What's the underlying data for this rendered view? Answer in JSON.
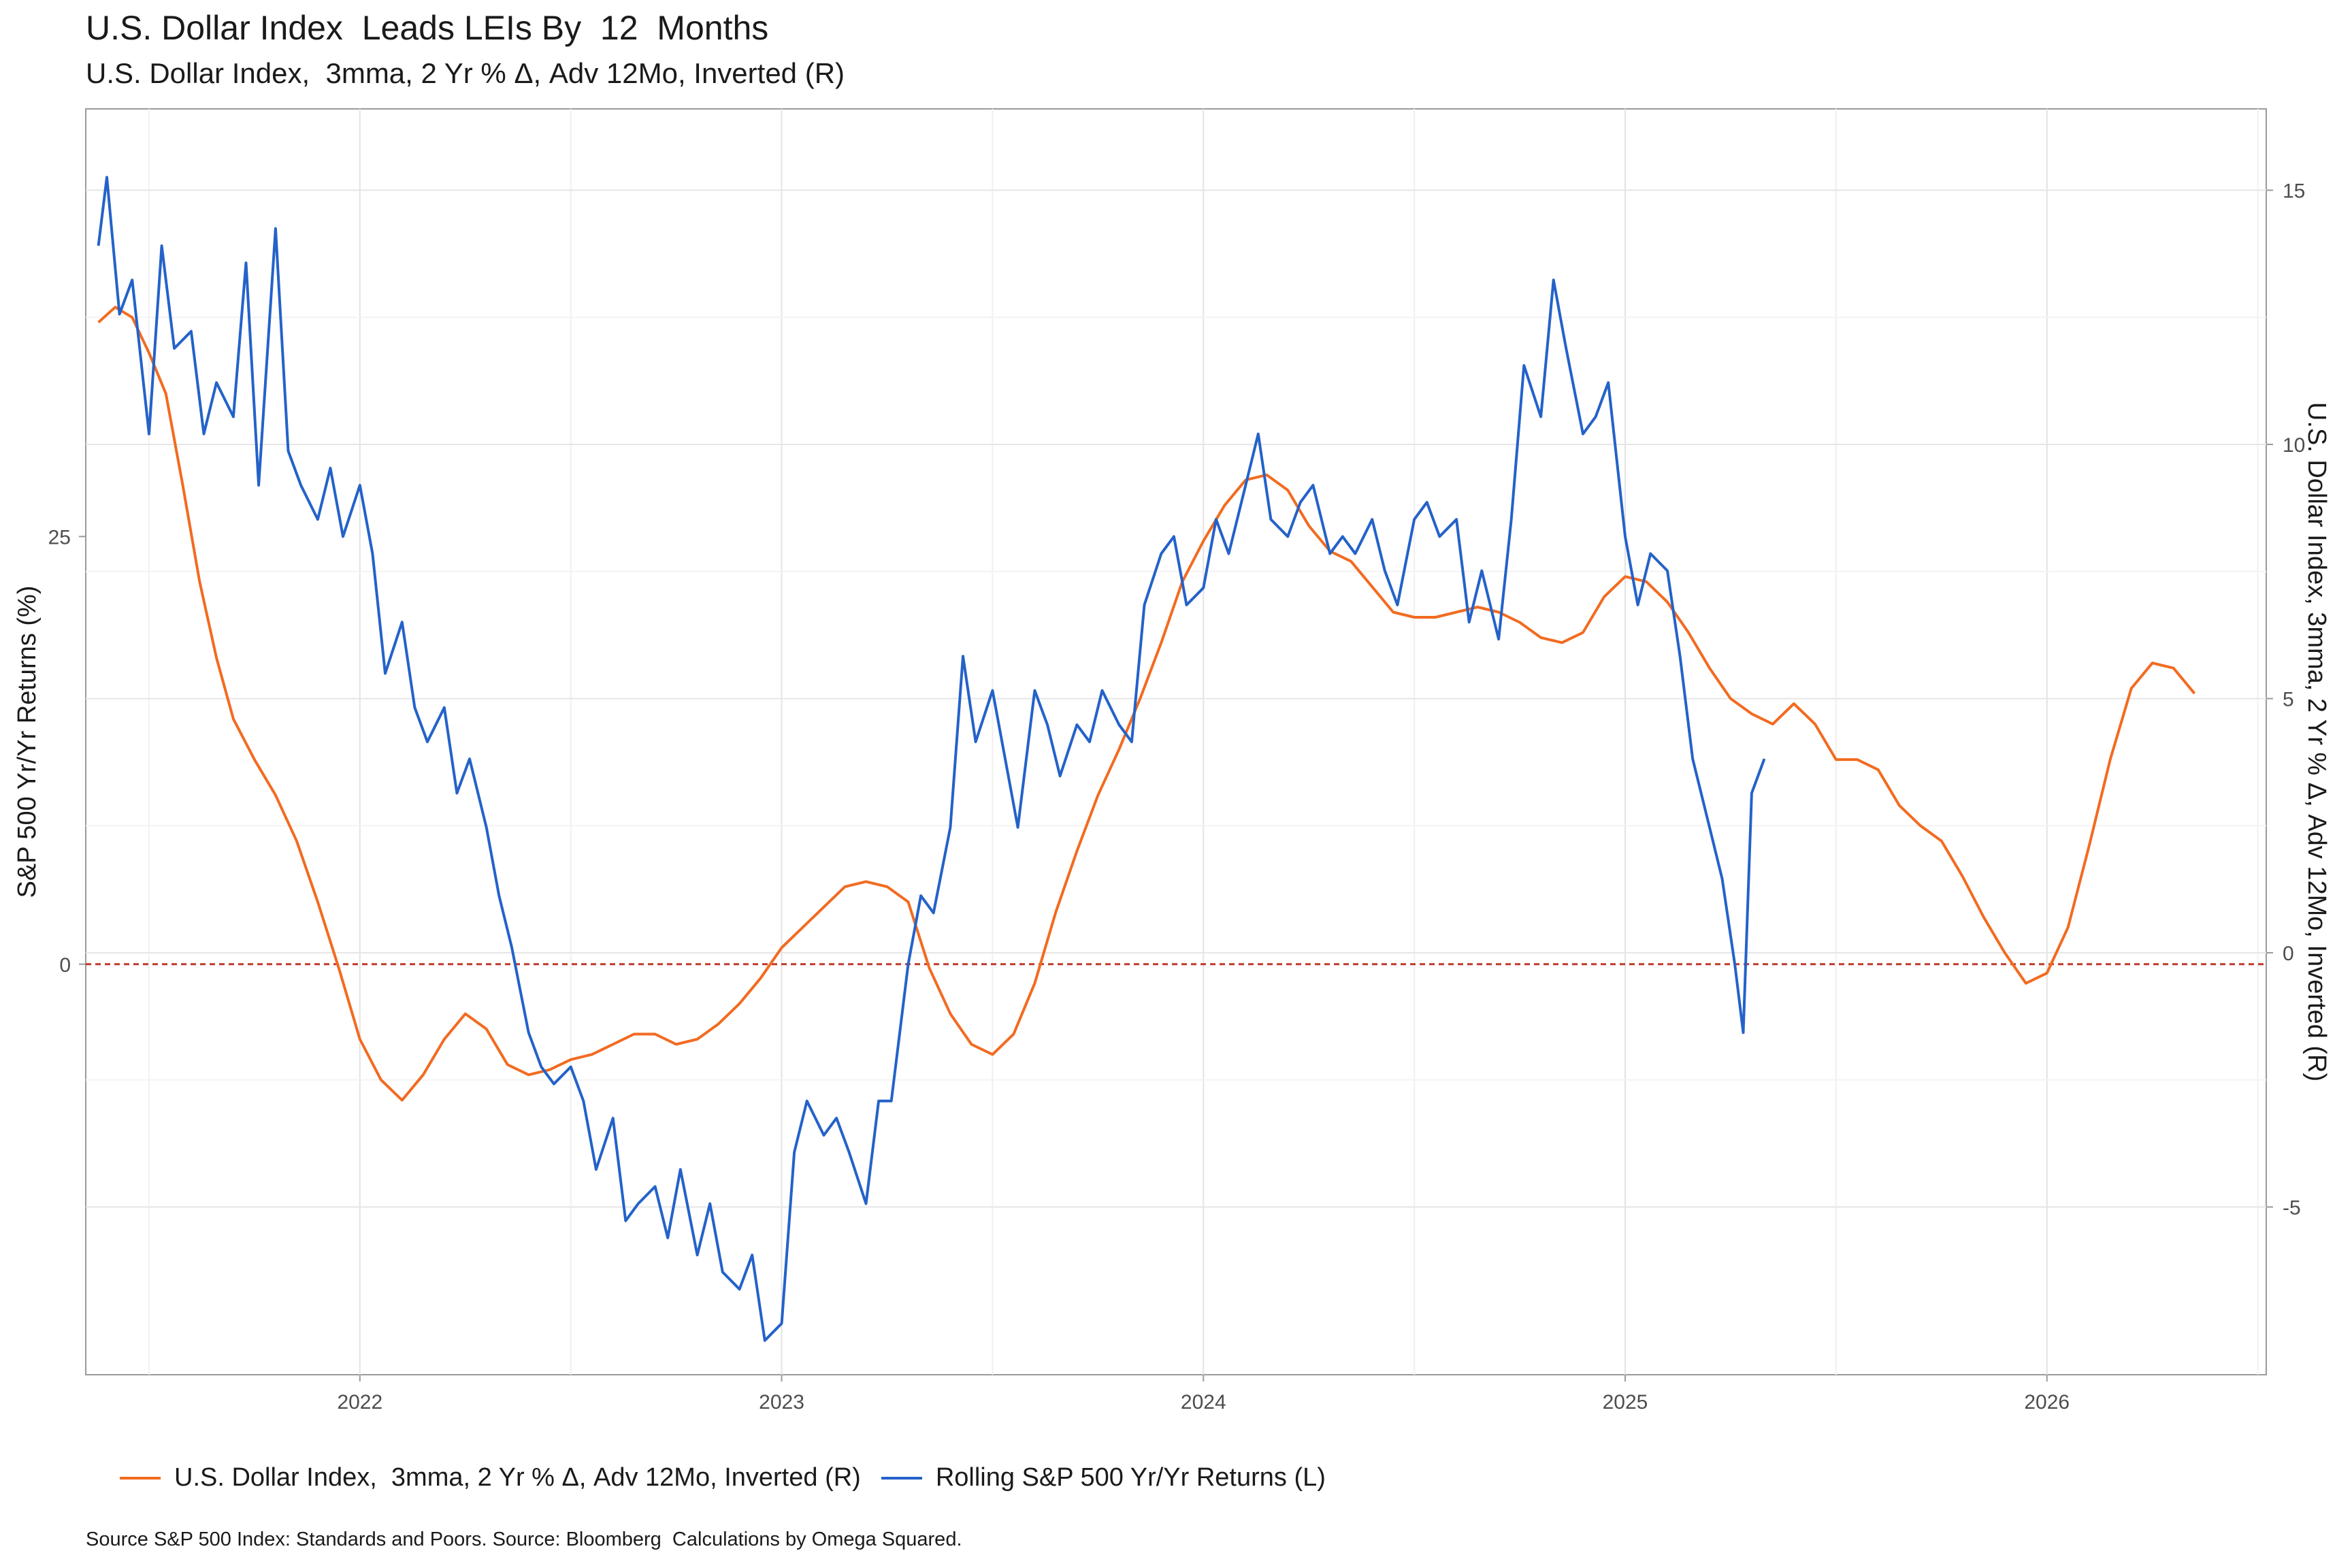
{
  "title": "U.S. Dollar Index  Leads LEIs By  12  Months",
  "subtitle": "U.S. Dollar Index,  3mma, 2 Yr % Δ, Adv 12Mo, Inverted (R)",
  "source": "Source S&P 500 Index: Standards and Poors. Source: Bloomberg  Calculations by Omega Squared.",
  "legend": [
    {
      "label": "U.S. Dollar Index,  3mma, 2 Yr % Δ, Adv 12Mo, Inverted (R)",
      "color": "#F26B21"
    },
    {
      "label": "Rolling S&P 500 Yr/Yr Returns (L)",
      "color": "#2462C9"
    }
  ],
  "chart_data": {
    "type": "line",
    "ylabel": "S&P 500 Yr/Yr Returns (%)",
    "y2label": "U.S. Dollar Index,  3mma, 2 Yr % Δ, Adv 12Mo, Inverted (R)",
    "xlim": [
      2021.35,
      2026.52
    ],
    "ylim": [
      -24,
      50
    ],
    "y2lim": [
      -8.3,
      16.6
    ],
    "x_ticks": [
      "2022",
      "2023",
      "2024",
      "2025",
      "2026"
    ],
    "y_ticks": [
      "0",
      "25"
    ],
    "y2_ticks": [
      "-5",
      "0",
      "5",
      "10",
      "15"
    ],
    "zero_line_color": "#C0392B",
    "grid": true,
    "legend_position": "bottom",
    "series": [
      {
        "name": "Rolling S&P 500 Yr/Yr Returns (L)",
        "axis": "left",
        "color": "#2462C9",
        "x": [
          2021.38,
          2021.4,
          2021.43,
          2021.46,
          2021.5,
          2021.53,
          2021.56,
          2021.6,
          2021.63,
          2021.66,
          2021.7,
          2021.73,
          2021.76,
          2021.8,
          2021.83,
          2021.86,
          2021.9,
          2021.93,
          2021.96,
          2022.0,
          2022.03,
          2022.06,
          2022.1,
          2022.13,
          2022.16,
          2022.2,
          2022.23,
          2022.26,
          2022.3,
          2022.33,
          2022.36,
          2022.4,
          2022.43,
          2022.46,
          2022.5,
          2022.53,
          2022.56,
          2022.6,
          2022.63,
          2022.66,
          2022.7,
          2022.73,
          2022.76,
          2022.8,
          2022.83,
          2022.86,
          2022.9,
          2022.93,
          2022.96,
          2023.0,
          2023.03,
          2023.06,
          2023.1,
          2023.13,
          2023.16,
          2023.2,
          2023.23,
          2023.26,
          2023.3,
          2023.33,
          2023.36,
          2023.4,
          2023.43,
          2023.46,
          2023.5,
          2023.53,
          2023.56,
          2023.6,
          2023.63,
          2023.66,
          2023.7,
          2023.73,
          2023.76,
          2023.8,
          2023.83,
          2023.86,
          2023.9,
          2023.93,
          2023.96,
          2024.0,
          2024.03,
          2024.06,
          2024.1,
          2024.13,
          2024.16,
          2024.2,
          2024.23,
          2024.26,
          2024.3,
          2024.33,
          2024.36,
          2024.4,
          2024.43,
          2024.46,
          2024.5,
          2024.53,
          2024.56,
          2024.6,
          2024.63,
          2024.66,
          2024.7,
          2024.73,
          2024.76,
          2024.8,
          2024.83,
          2024.86,
          2024.9,
          2024.93,
          2024.96,
          2025.0,
          2025.03,
          2025.06,
          2025.1,
          2025.13,
          2025.16,
          2025.2,
          2025.23,
          2025.26,
          2025.28,
          2025.3,
          2025.33
        ],
        "values": [
          42,
          46,
          38,
          40,
          31,
          42,
          36,
          37,
          31,
          34,
          32,
          41,
          28,
          43,
          30,
          28,
          26,
          29,
          25,
          28,
          24,
          17,
          20,
          15,
          13,
          15,
          10,
          12,
          8,
          4,
          1,
          -4,
          -6,
          -7,
          -6,
          -8,
          -12,
          -9,
          -15,
          -14,
          -13,
          -16,
          -12,
          -17,
          -14,
          -18,
          -19,
          -17,
          -22,
          -21,
          -11,
          -8,
          -10,
          -9,
          -11,
          -14,
          -8,
          -8,
          0,
          4,
          3,
          8,
          18,
          13,
          16,
          12,
          8,
          16,
          14,
          11,
          14,
          13,
          16,
          14,
          13,
          21,
          24,
          25,
          21,
          22,
          26,
          24,
          28,
          31,
          26,
          25,
          27,
          28,
          24,
          25,
          24,
          26,
          23,
          21,
          26,
          27,
          25,
          26,
          20,
          23,
          19,
          26,
          35,
          32,
          40,
          36,
          31,
          32,
          34,
          25,
          21,
          24,
          23,
          18,
          12,
          8,
          5,
          0,
          -4,
          10,
          12
        ]
      },
      {
        "name": "U.S. Dollar Index,  3mma, 2 Yr % Δ, Adv 12Mo, Inverted (R)",
        "axis": "right",
        "color": "#F26B21",
        "x": [
          2021.38,
          2021.42,
          2021.46,
          2021.5,
          2021.54,
          2021.58,
          2021.62,
          2021.66,
          2021.7,
          2021.75,
          2021.8,
          2021.85,
          2021.9,
          2021.95,
          2022.0,
          2022.05,
          2022.1,
          2022.15,
          2022.2,
          2022.25,
          2022.3,
          2022.35,
          2022.4,
          2022.45,
          2022.5,
          2022.55,
          2022.6,
          2022.65,
          2022.7,
          2022.75,
          2022.8,
          2022.85,
          2022.9,
          2022.95,
          2023.0,
          2023.05,
          2023.1,
          2023.15,
          2023.2,
          2023.25,
          2023.3,
          2023.35,
          2023.4,
          2023.45,
          2023.5,
          2023.55,
          2023.6,
          2023.65,
          2023.7,
          2023.75,
          2023.8,
          2023.85,
          2023.9,
          2023.95,
          2024.0,
          2024.05,
          2024.1,
          2024.15,
          2024.2,
          2024.25,
          2024.3,
          2024.35,
          2024.4,
          2024.45,
          2024.5,
          2024.55,
          2024.6,
          2024.65,
          2024.7,
          2024.75,
          2024.8,
          2024.85,
          2024.9,
          2024.95,
          2025.0,
          2025.05,
          2025.1,
          2025.15,
          2025.2,
          2025.25,
          2025.3,
          2025.35,
          2025.4,
          2025.45,
          2025.5,
          2025.55,
          2025.6,
          2025.65,
          2025.7,
          2025.75,
          2025.8,
          2025.85,
          2025.9,
          2025.95,
          2026.0,
          2026.05,
          2026.1,
          2026.15,
          2026.2,
          2026.25,
          2026.3,
          2026.35
        ],
        "values": [
          12.4,
          12.7,
          12.5,
          11.8,
          11.0,
          9.2,
          7.3,
          5.8,
          4.6,
          3.8,
          3.1,
          2.2,
          1.0,
          -0.3,
          -1.7,
          -2.5,
          -2.9,
          -2.4,
          -1.7,
          -1.2,
          -1.5,
          -2.2,
          -2.4,
          -2.3,
          -2.1,
          -2.0,
          -1.8,
          -1.6,
          -1.6,
          -1.8,
          -1.7,
          -1.4,
          -1.0,
          -0.5,
          0.1,
          0.5,
          0.9,
          1.3,
          1.4,
          1.3,
          1.0,
          -0.3,
          -1.2,
          -1.8,
          -2.0,
          -1.6,
          -0.6,
          0.8,
          2.0,
          3.1,
          4.0,
          5.0,
          6.1,
          7.3,
          8.1,
          8.8,
          9.3,
          9.4,
          9.1,
          8.4,
          7.9,
          7.7,
          7.2,
          6.7,
          6.6,
          6.6,
          6.7,
          6.8,
          6.7,
          6.5,
          6.2,
          6.1,
          6.3,
          7.0,
          7.4,
          7.3,
          6.9,
          6.3,
          5.6,
          5.0,
          4.7,
          4.5,
          4.9,
          4.5,
          3.8,
          3.8,
          3.6,
          2.9,
          2.5,
          2.2,
          1.5,
          0.7,
          0.0,
          -0.6,
          -0.4,
          0.5,
          2.1,
          3.8,
          5.2,
          5.7,
          5.6,
          5.1
        ]
      }
    ]
  }
}
